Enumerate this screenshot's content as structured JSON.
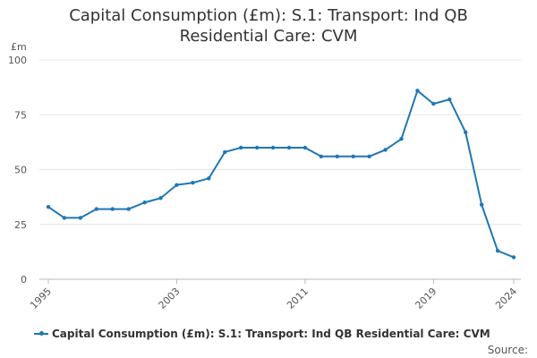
{
  "chart_data": {
    "type": "line",
    "title_lines": [
      "Capital Consumption (£m): S.1: Transport: Ind QB",
      "Residential Care: CVM"
    ],
    "ylabel": "£m",
    "ylim": [
      0,
      100
    ],
    "yticks": [
      0,
      25,
      50,
      75,
      100
    ],
    "xlim": [
      1995,
      2024
    ],
    "xticks": [
      1995,
      2003,
      2011,
      2019,
      2024
    ],
    "grid": true,
    "legend_position": "bottom",
    "series": [
      {
        "name": "Capital Consumption (£m): S.1: Transport: Ind QB Residential Care: CVM",
        "color": "#1f77b4",
        "x": [
          1995,
          1996,
          1997,
          1998,
          1999,
          2000,
          2001,
          2002,
          2003,
          2004,
          2005,
          2006,
          2007,
          2008,
          2009,
          2010,
          2011,
          2012,
          2013,
          2014,
          2015,
          2016,
          2017,
          2018,
          2019,
          2020,
          2021,
          2022,
          2023,
          2024
        ],
        "values": [
          33,
          28,
          28,
          32,
          32,
          32,
          35,
          37,
          43,
          44,
          46,
          58,
          60,
          60,
          60,
          60,
          60,
          56,
          56,
          56,
          56,
          59,
          64,
          86,
          80,
          82,
          67,
          34,
          13,
          10
        ]
      }
    ],
    "source": "Source:"
  }
}
